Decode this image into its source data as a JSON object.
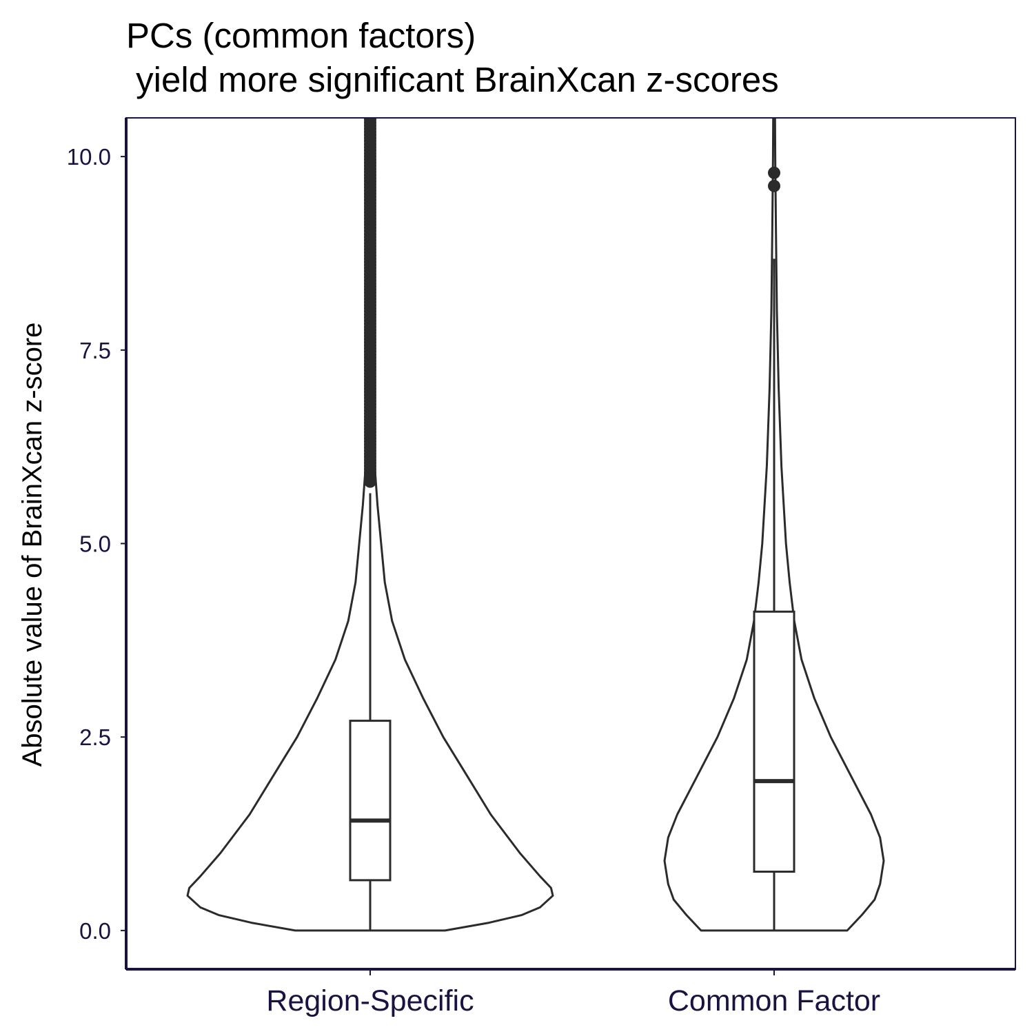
{
  "chart_data": {
    "type": "violin",
    "title_lines": [
      "PCs (common factors)",
      " yield more significant BrainXcan z-scores"
    ],
    "xlabel": "",
    "ylabel": "Absolute value of BrainXcan z-score",
    "categories": [
      "Region-Specific",
      "Common Factor"
    ],
    "ylim": [
      -0.5,
      10.5
    ],
    "yticks": [
      "0.0",
      "2.5",
      "5.0",
      "7.5",
      "10.0"
    ],
    "grid": false,
    "legend": "none",
    "colors": {
      "axis": "#1a1240",
      "tick_text": "#1a1240",
      "mark": "#2b2b2b",
      "fill": "#ffffff"
    },
    "series": [
      {
        "category": "Region-Specific",
        "box": {
          "q1": 0.65,
          "median": 1.42,
          "q3": 2.71,
          "whisker_low": 0.0,
          "whisker_high": 5.65
        },
        "outlier_range": [
          5.8,
          10.5
        ],
        "violin_profile": [
          [
            0.0,
            0.41
          ],
          [
            0.1,
            0.65
          ],
          [
            0.2,
            0.83
          ],
          [
            0.3,
            0.93
          ],
          [
            0.45,
            1.0
          ],
          [
            0.55,
            0.99
          ],
          [
            0.7,
            0.93
          ],
          [
            1.0,
            0.82
          ],
          [
            1.5,
            0.66
          ],
          [
            2.0,
            0.53
          ],
          [
            2.5,
            0.4
          ],
          [
            3.0,
            0.29
          ],
          [
            3.5,
            0.19
          ],
          [
            4.0,
            0.12
          ],
          [
            4.5,
            0.08
          ],
          [
            5.0,
            0.06
          ],
          [
            5.5,
            0.04
          ],
          [
            6.0,
            0.025
          ],
          [
            7.0,
            0.015
          ],
          [
            8.0,
            0.01
          ],
          [
            10.5,
            0.005
          ]
        ]
      },
      {
        "category": "Common Factor",
        "box": {
          "q1": 0.76,
          "median": 1.93,
          "q3": 4.12,
          "whisker_low": 0.0,
          "whisker_high": 8.68
        },
        "outliers": [
          9.62,
          9.79
        ],
        "violin_profile": [
          [
            0.0,
            0.4
          ],
          [
            0.2,
            0.48
          ],
          [
            0.4,
            0.55
          ],
          [
            0.6,
            0.58
          ],
          [
            0.9,
            0.6
          ],
          [
            1.2,
            0.58
          ],
          [
            1.5,
            0.53
          ],
          [
            2.0,
            0.42
          ],
          [
            2.5,
            0.31
          ],
          [
            3.0,
            0.22
          ],
          [
            3.5,
            0.15
          ],
          [
            4.0,
            0.11
          ],
          [
            4.5,
            0.085
          ],
          [
            5.0,
            0.065
          ],
          [
            6.0,
            0.04
          ],
          [
            7.0,
            0.025
          ],
          [
            8.0,
            0.015
          ],
          [
            9.0,
            0.01
          ],
          [
            10.0,
            0.006
          ],
          [
            10.5,
            0.005
          ]
        ]
      }
    ]
  }
}
